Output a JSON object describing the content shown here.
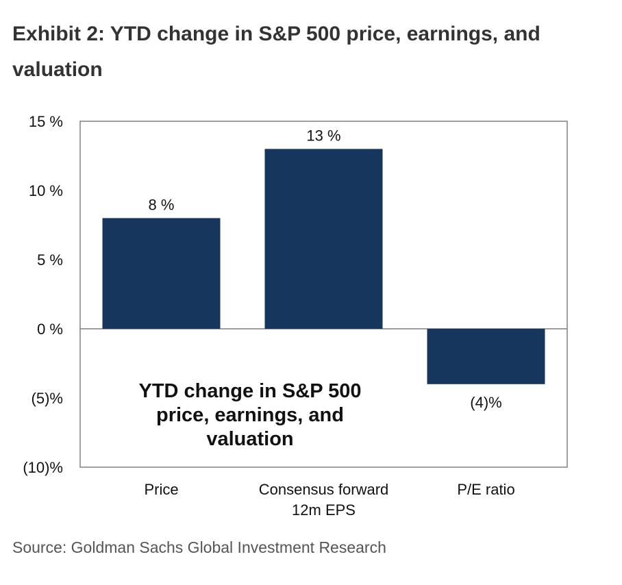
{
  "header": {
    "title": "Exhibit 2: YTD change in S&P 500 price, earnings, and valuation"
  },
  "footer": {
    "source": "Source: Goldman Sachs Global Investment Research"
  },
  "chart_data": {
    "type": "bar",
    "title": "",
    "annotation": [
      "YTD change in S&P 500",
      "price, earnings, and",
      "valuation"
    ],
    "categories": [
      [
        "Price"
      ],
      [
        "Consensus forward",
        "12m EPS"
      ],
      [
        "P/E ratio"
      ]
    ],
    "values": [
      8,
      13,
      -4
    ],
    "data_labels": [
      "8 %",
      "13 %",
      "(4)%"
    ],
    "ylim": [
      -10,
      15
    ],
    "yticks": [
      15,
      10,
      5,
      0,
      -5,
      -10
    ],
    "ytick_labels": [
      "15 %",
      "10 %",
      "5 %",
      "0 %",
      "(5)%",
      "(10)%"
    ],
    "xlabel": "",
    "ylabel": "",
    "grid": false,
    "colors": {
      "bar": "#17365d",
      "axis": "#808080",
      "frame": "#808080"
    }
  }
}
